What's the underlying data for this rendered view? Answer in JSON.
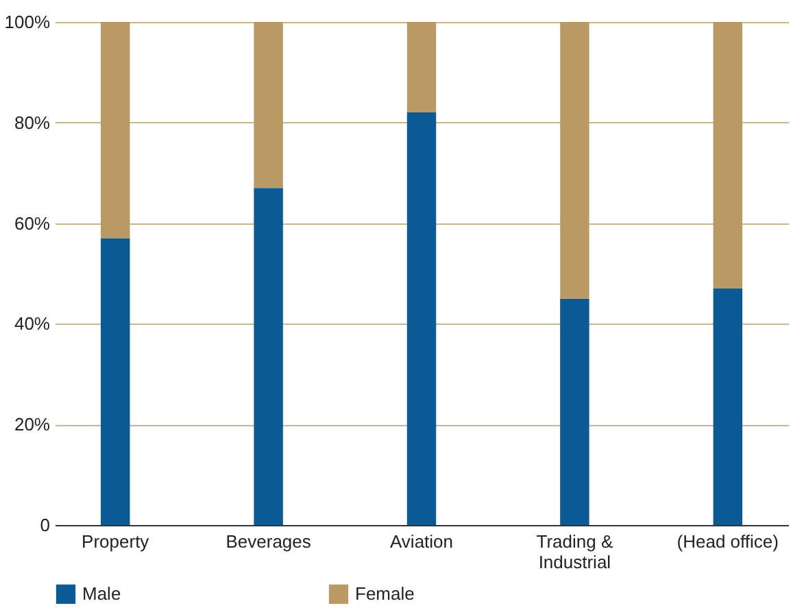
{
  "chart_data": {
    "type": "bar",
    "stacked": true,
    "categories": [
      "Property",
      "Beverages",
      "Aviation",
      "Trading & Industrial",
      "(Head office)"
    ],
    "series": [
      {
        "name": "Male",
        "color": "#0b5a94",
        "values": [
          57,
          67,
          82,
          45,
          47
        ]
      },
      {
        "name": "Female",
        "color": "#b99a64",
        "values": [
          43,
          33,
          18,
          55,
          53
        ]
      }
    ],
    "ylim": [
      0,
      100
    ],
    "yticks": [
      {
        "value": 0,
        "label": "0"
      },
      {
        "value": 20,
        "label": "20%"
      },
      {
        "value": 40,
        "label": "40%"
      },
      {
        "value": 60,
        "label": "60%"
      },
      {
        "value": 80,
        "label": "80%"
      },
      {
        "value": 100,
        "label": "100%"
      }
    ],
    "grid": "y",
    "legend": "bottom"
  }
}
